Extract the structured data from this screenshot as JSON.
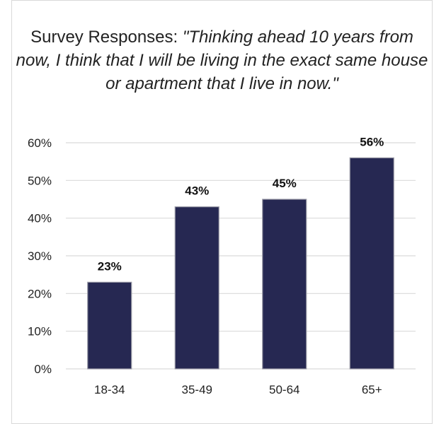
{
  "chart_data": {
    "type": "bar",
    "title_prefix": "Survey Responses: ",
    "title_quote": "\"Thinking ahead 10 years from now, I think that I will be living in the exact same house or apartment that I live in now.\"",
    "categories": [
      "18-34",
      "35-49",
      "50-64",
      "65+"
    ],
    "values": [
      23,
      43,
      45,
      56
    ],
    "data_labels": [
      "23%",
      "43%",
      "45%",
      "56%"
    ],
    "ylim": [
      0,
      60
    ],
    "yticks": [
      0,
      10,
      20,
      30,
      40,
      50,
      60
    ],
    "ytick_labels": [
      "0%",
      "10%",
      "20%",
      "30%",
      "40%",
      "50%",
      "60%"
    ],
    "xlabel": "",
    "ylabel": "",
    "grid": true,
    "legend": "none",
    "colors": {
      "bar": "#262852",
      "bar_edge": "#9a9aa6",
      "grid": "#d9d9d9",
      "text": "#222222"
    }
  }
}
